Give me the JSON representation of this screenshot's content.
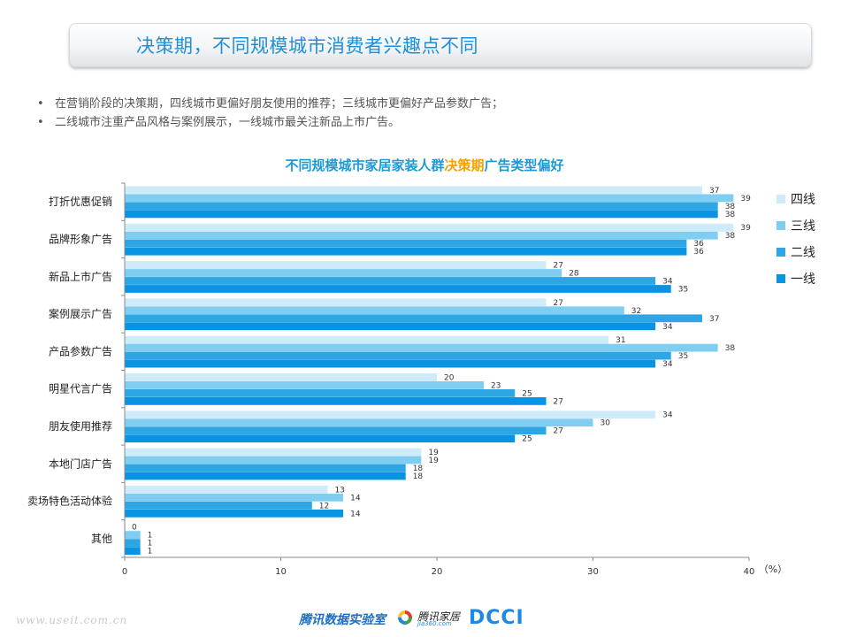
{
  "header": {
    "title": "决策期，不同规模城市消费者兴趣点不同"
  },
  "bullets": [
    "在营销阶段的决策期，四线城市更偏好朋友使用的推荐；三线城市更偏好产品参数广告；",
    "二线城市注重产品风格与案例展示，一线城市最关注新品上市广告。"
  ],
  "bullet_glyph": "•",
  "footer": {
    "url": "www.useit.com.cn",
    "lab": "腾讯数据实验室",
    "house_name": "腾讯家居",
    "house_sub": "jia360.com",
    "dcci": "DCCI"
  },
  "colors": {
    "title": "#1f8fd7",
    "chart_title": "#1a9bd7",
    "chart_title_highlight": "#f5a000",
    "series": [
      "#cdebf9",
      "#7fcdf0",
      "#2ea6e4",
      "#0a93e0"
    ]
  },
  "chart_data": {
    "type": "bar",
    "orientation": "horizontal",
    "title_parts": [
      "不同规模城市家居家装人群",
      "决策期",
      "广告类型偏好"
    ],
    "categories": [
      "打折优惠促销",
      "品牌形象广告",
      "新品上市广告",
      "案例展示广告",
      "产品参数广告",
      "明星代言广告",
      "朋友使用推荐",
      "本地门店广告",
      "卖场特色活动体验",
      "其他"
    ],
    "series": [
      {
        "name": "四线",
        "values": [
          37,
          39,
          27,
          27,
          31,
          20,
          34,
          19,
          13,
          0
        ]
      },
      {
        "name": "三线",
        "values": [
          39,
          38,
          28,
          32,
          38,
          23,
          30,
          19,
          14,
          1
        ]
      },
      {
        "name": "二线",
        "values": [
          38,
          36,
          34,
          37,
          35,
          25,
          27,
          18,
          12,
          1
        ]
      },
      {
        "name": "一线",
        "values": [
          38,
          36,
          35,
          34,
          34,
          27,
          25,
          18,
          14,
          1
        ]
      }
    ],
    "xlim": [
      0,
      40
    ],
    "xticks": [
      0,
      10,
      20,
      30,
      40
    ],
    "x_unit": "（%）",
    "legend": "right",
    "grid": false,
    "data_labels": true
  }
}
